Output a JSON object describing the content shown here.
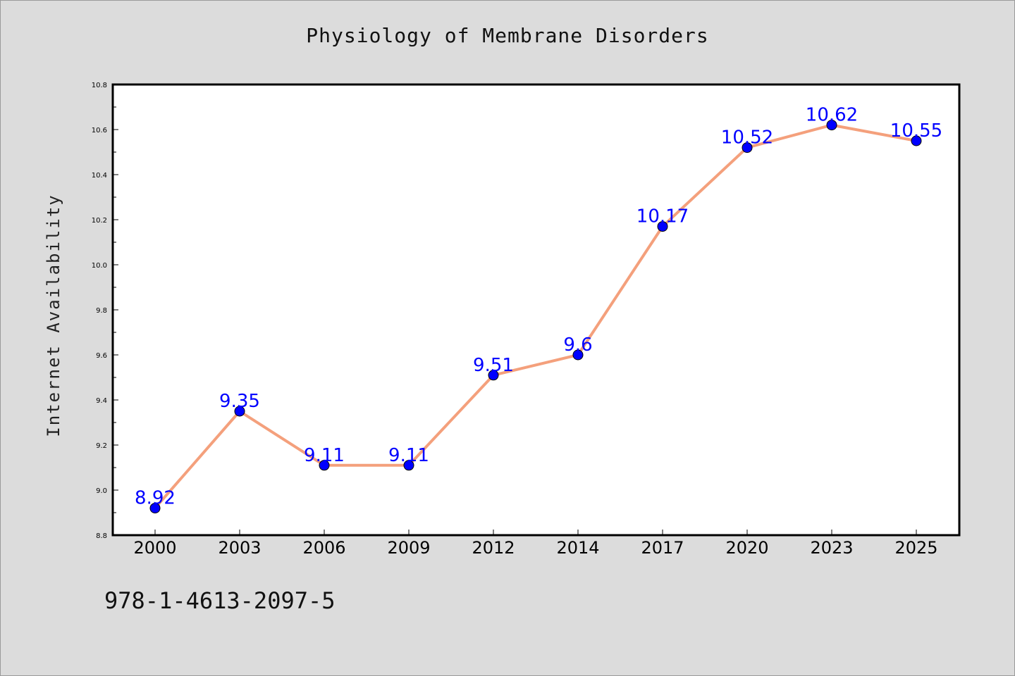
{
  "chart_data": {
    "type": "line",
    "title": "Physiology of Membrane Disorders",
    "xlabel": "",
    "ylabel": "Internet Availability",
    "categories": [
      "2000",
      "2003",
      "2006",
      "2009",
      "2012",
      "2014",
      "2017",
      "2020",
      "2023",
      "2025"
    ],
    "series": [
      {
        "values": [
          8.92,
          9.35,
          9.11,
          9.11,
          9.51,
          9.6,
          10.17,
          10.52,
          10.62,
          10.55
        ],
        "data_labels": [
          "8.92",
          "9.35",
          "9.11",
          "9.11",
          "9.51",
          "9.6",
          "10.17",
          "10.52",
          "10.62",
          "10.55"
        ]
      }
    ],
    "ylim": [
      8.8,
      10.8
    ],
    "yticks": [
      "8.8",
      "9.0",
      "9.2",
      "9.4",
      "9.6",
      "9.8",
      "10.0",
      "10.2",
      "10.4",
      "10.6",
      "10.8"
    ],
    "grid": false,
    "line_color": "#f4a07c",
    "marker_color": "#0000ff",
    "label_color": "#0000ff",
    "background": "#dcdcdc",
    "plot_background": "#ffffff"
  },
  "footer": {
    "code": "978-1-4613-2097-5"
  }
}
